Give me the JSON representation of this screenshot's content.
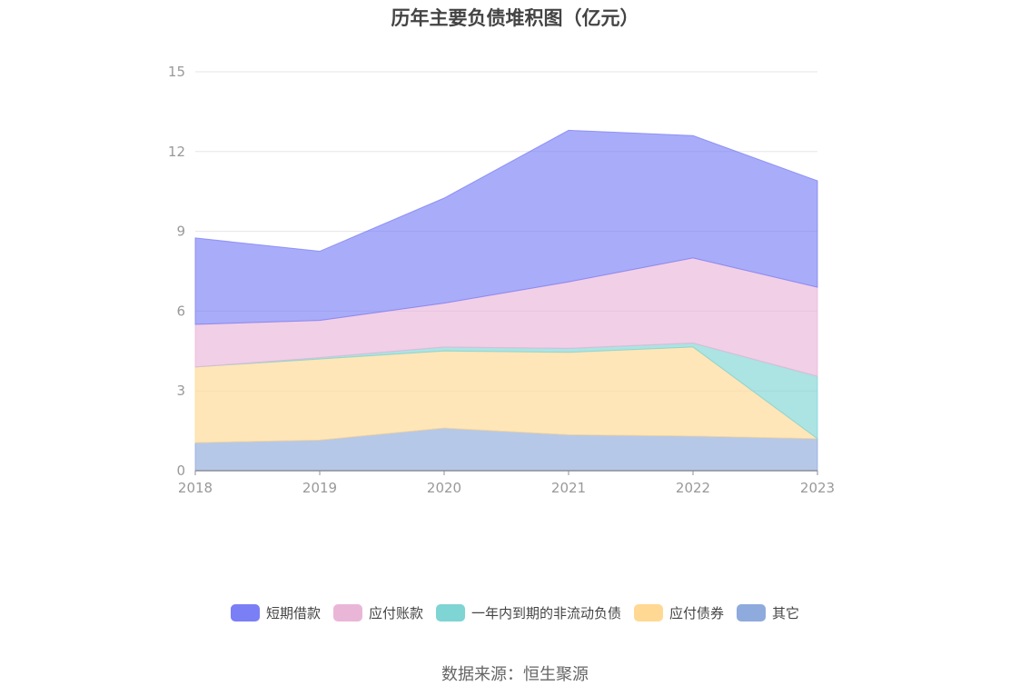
{
  "chart_data": {
    "type": "area",
    "stacked": true,
    "title": "历年主要负债堆积图（亿元）",
    "x": [
      "2018",
      "2019",
      "2020",
      "2021",
      "2022",
      "2023"
    ],
    "ylim": [
      0,
      15
    ],
    "yticks": [
      "0",
      "3",
      "6",
      "9",
      "12",
      "15"
    ],
    "grid": true,
    "legend_position": "bottom",
    "series": [
      {
        "name": "其它",
        "color": "#8faadc",
        "values": [
          1.05,
          1.15,
          1.6,
          1.35,
          1.3,
          1.2
        ]
      },
      {
        "name": "应付债券",
        "color": "#ffd993",
        "values": [
          2.85,
          3.05,
          2.9,
          3.1,
          3.35,
          0.0
        ]
      },
      {
        "name": "一年内到期的非流动负债",
        "color": "#7fd4d4",
        "values": [
          0.0,
          0.05,
          0.15,
          0.15,
          0.15,
          2.35
        ]
      },
      {
        "name": "应付账款",
        "color": "#eab6d8",
        "values": [
          1.6,
          1.4,
          1.65,
          2.5,
          3.2,
          3.35
        ]
      },
      {
        "name": "短期借款",
        "color": "#7b7ff5",
        "values": [
          3.25,
          2.6,
          3.95,
          5.7,
          4.6,
          4.0
        ]
      }
    ],
    "legend_order": [
      "短期借款",
      "应付账款",
      "一年内到期的非流动负债",
      "应付债券",
      "其它"
    ]
  },
  "source": "数据来源：恒生聚源"
}
